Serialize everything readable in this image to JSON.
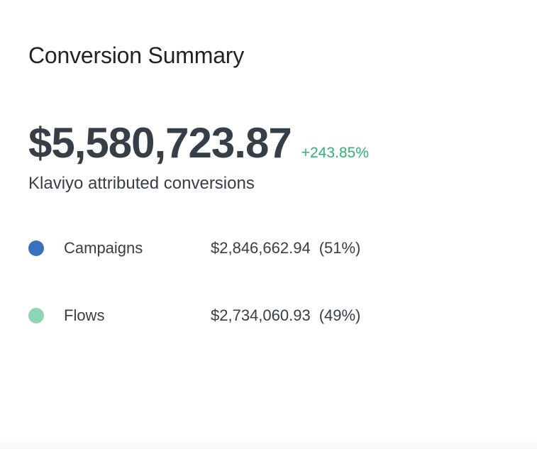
{
  "card": {
    "title": "Conversion Summary",
    "total_value": "$5,580,723.87",
    "change_percent": "+243.85%",
    "subtitle": "Klaviyo attributed conversions"
  },
  "breakdown": [
    {
      "label": "Campaigns",
      "value": "$2,846,662.94",
      "percent": "(51%)",
      "color": "#3872bf"
    },
    {
      "label": "Flows",
      "value": "$2,734,060.93",
      "percent": "(49%)",
      "color": "#8dd5b5"
    }
  ],
  "colors": {
    "positive_change": "#2fb36f",
    "text_primary": "#363e47"
  }
}
